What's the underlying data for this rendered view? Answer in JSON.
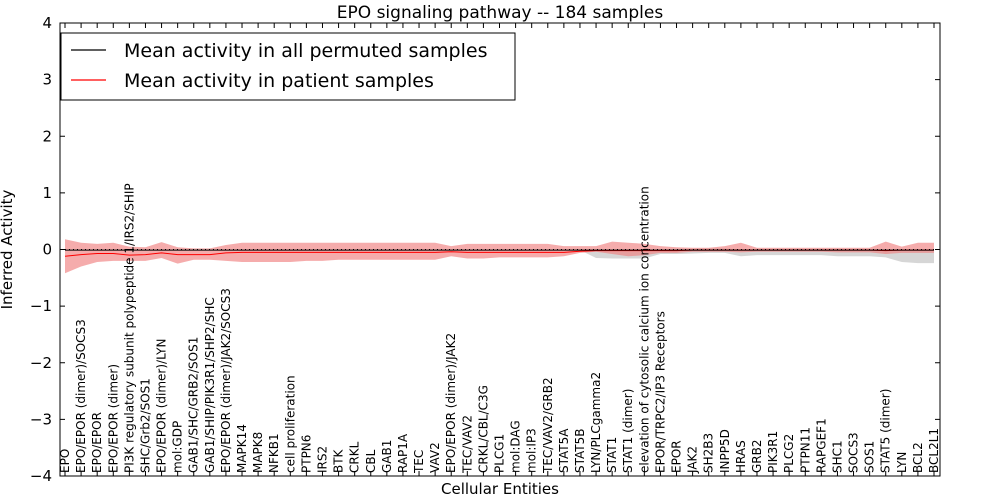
{
  "chart_data": {
    "type": "line",
    "title": "EPO signaling pathway -- 184 samples",
    "xlabel": "Cellular Entities",
    "ylabel": "Inferred Activity",
    "ylim": [
      -4,
      4
    ],
    "yticks": [
      -4,
      -3,
      -2,
      -1,
      0,
      1,
      2,
      3,
      4
    ],
    "ytick_labels": [
      "−4",
      "−3",
      "−2",
      "−1",
      "0",
      "1",
      "2",
      "3",
      "4"
    ],
    "legend_position": "top-left",
    "categories": [
      "EPO",
      "EPO/EPOR (dimer)/SOCS3",
      "EPO/EPOR",
      "EPO/EPOR (dimer)",
      "PI3K regulatory subunit polypeptide 1/IRS2/SHIP",
      "SHC/Grb2/SOS1",
      "EPO/EPOR (dimer)/LYN",
      "mol:GDP",
      "GAB1/SHC/GRB2/SOS1",
      "GAB1/SHIP/PIK3R1/SHP2/SHC",
      "EPO/EPOR (dimer)/JAK2/SOCS3",
      "MAPK14",
      "MAPK8",
      "NFKB1",
      "cell proliferation",
      "PTPN6",
      "IRS2",
      "BTK",
      "CRKL",
      "CBL",
      "GAB1",
      "RAP1A",
      "TEC",
      "VAV2",
      "EPO/EPOR (dimer)/JAK2",
      "TEC/VAV2",
      "CRKL/CBL/C3G",
      "PLCG1",
      "mol:DAG",
      "mol:IP3",
      "TEC/VAV2/GRB2",
      "STAT5A",
      "STAT5B",
      "LYN/PLCgamma2",
      "STAT1",
      "STAT1 (dimer)",
      "elevation of cytosolic calcium ion concentration",
      "EPOR/TRPC2/IP3 Receptors",
      "EPOR",
      "JAK2",
      "SH2B3",
      "INPP5D",
      "HRAS",
      "GRB2",
      "PIK3R1",
      "PLCG2",
      "PTPN11",
      "RAPGEF1",
      "SHC1",
      "SOCS3",
      "SOS1",
      "STAT5 (dimer)",
      "LYN",
      "BCL2",
      "BCL2L1"
    ],
    "series": [
      {
        "name": "Mean activity in all permuted samples",
        "color": "#000000",
        "values": [
          -0.01,
          -0.01,
          -0.01,
          -0.01,
          -0.01,
          -0.01,
          -0.01,
          -0.01,
          -0.01,
          -0.01,
          -0.01,
          -0.01,
          -0.01,
          -0.01,
          -0.01,
          -0.01,
          -0.01,
          -0.01,
          -0.01,
          -0.01,
          -0.01,
          -0.01,
          -0.01,
          -0.01,
          -0.01,
          -0.01,
          -0.01,
          -0.01,
          -0.01,
          -0.01,
          -0.01,
          -0.01,
          -0.01,
          -0.01,
          -0.01,
          -0.01,
          -0.01,
          -0.01,
          -0.01,
          -0.01,
          -0.01,
          -0.01,
          -0.01,
          -0.01,
          -0.01,
          -0.01,
          -0.01,
          -0.01,
          -0.01,
          -0.01,
          -0.01,
          -0.01,
          -0.01,
          -0.01,
          -0.01
        ],
        "lower": [
          -0.01,
          -0.01,
          -0.01,
          -0.01,
          -0.01,
          -0.01,
          -0.01,
          -0.01,
          -0.01,
          -0.01,
          -0.01,
          -0.01,
          -0.01,
          -0.01,
          -0.01,
          -0.01,
          -0.01,
          -0.01,
          -0.01,
          -0.01,
          -0.01,
          -0.01,
          -0.01,
          -0.01,
          -0.01,
          -0.01,
          -0.01,
          -0.01,
          -0.01,
          -0.01,
          -0.01,
          -0.01,
          -0.01,
          -0.15,
          -0.16,
          -0.16,
          -0.16,
          -0.08,
          -0.08,
          -0.07,
          -0.06,
          -0.06,
          -0.12,
          -0.1,
          -0.1,
          -0.1,
          -0.1,
          -0.1,
          -0.12,
          -0.12,
          -0.12,
          -0.14,
          -0.22,
          -0.24,
          -0.24
        ],
        "upper": [
          -0.01,
          -0.01,
          -0.01,
          -0.01,
          -0.01,
          -0.01,
          -0.01,
          -0.01,
          -0.01,
          -0.01,
          -0.01,
          -0.01,
          -0.01,
          -0.01,
          -0.01,
          -0.01,
          -0.01,
          -0.01,
          -0.01,
          -0.01,
          -0.01,
          -0.01,
          -0.01,
          -0.01,
          -0.01,
          -0.01,
          -0.01,
          -0.01,
          -0.01,
          -0.01,
          -0.01,
          -0.01,
          -0.01,
          0.0,
          0.0,
          0.0,
          0.0,
          0.0,
          0.0,
          0.01,
          0.02,
          0.02,
          0.0,
          0.0,
          0.0,
          0.0,
          0.0,
          0.0,
          0.0,
          0.0,
          0.0,
          0.0,
          0.0,
          0.0,
          0.0
        ]
      },
      {
        "name": "Mean activity in patient samples",
        "color": "#ff0000",
        "values": [
          -0.12,
          -0.09,
          -0.07,
          -0.07,
          -0.1,
          -0.09,
          -0.06,
          -0.09,
          -0.09,
          -0.09,
          -0.06,
          -0.05,
          -0.05,
          -0.05,
          -0.05,
          -0.05,
          -0.05,
          -0.05,
          -0.05,
          -0.05,
          -0.05,
          -0.05,
          -0.05,
          -0.05,
          -0.04,
          -0.05,
          -0.05,
          -0.05,
          -0.05,
          -0.05,
          -0.05,
          -0.05,
          -0.03,
          -0.02,
          -0.02,
          -0.02,
          -0.02,
          -0.02,
          -0.02,
          -0.01,
          -0.01,
          -0.01,
          -0.01,
          -0.01,
          -0.01,
          -0.01,
          -0.01,
          -0.01,
          -0.01,
          -0.01,
          -0.01,
          -0.02,
          -0.01,
          -0.01,
          -0.01
        ],
        "lower": [
          -0.42,
          -0.3,
          -0.22,
          -0.2,
          -0.2,
          -0.2,
          -0.15,
          -0.25,
          -0.18,
          -0.18,
          -0.2,
          -0.22,
          -0.22,
          -0.22,
          -0.22,
          -0.2,
          -0.2,
          -0.18,
          -0.18,
          -0.18,
          -0.18,
          -0.18,
          -0.18,
          -0.18,
          -0.12,
          -0.16,
          -0.16,
          -0.14,
          -0.14,
          -0.14,
          -0.14,
          -0.12,
          -0.06,
          -0.04,
          -0.08,
          -0.12,
          -0.1,
          -0.06,
          -0.06,
          -0.04,
          -0.04,
          -0.04,
          -0.05,
          -0.04,
          -0.04,
          -0.04,
          -0.04,
          -0.04,
          -0.05,
          -0.05,
          -0.05,
          -0.08,
          -0.06,
          -0.06,
          -0.06
        ],
        "upper": [
          0.18,
          0.12,
          0.1,
          0.12,
          0.05,
          0.04,
          0.13,
          0.04,
          0.02,
          0.02,
          0.08,
          0.12,
          0.12,
          0.12,
          0.12,
          0.12,
          0.12,
          0.12,
          0.12,
          0.12,
          0.12,
          0.12,
          0.12,
          0.12,
          0.06,
          0.1,
          0.1,
          0.1,
          0.1,
          0.1,
          0.1,
          0.06,
          0.06,
          0.06,
          0.14,
          0.12,
          0.1,
          0.06,
          0.04,
          0.03,
          0.03,
          0.06,
          0.12,
          0.03,
          0.03,
          0.03,
          0.03,
          0.03,
          0.03,
          0.03,
          0.03,
          0.14,
          0.05,
          0.12,
          0.12
        ]
      }
    ]
  }
}
